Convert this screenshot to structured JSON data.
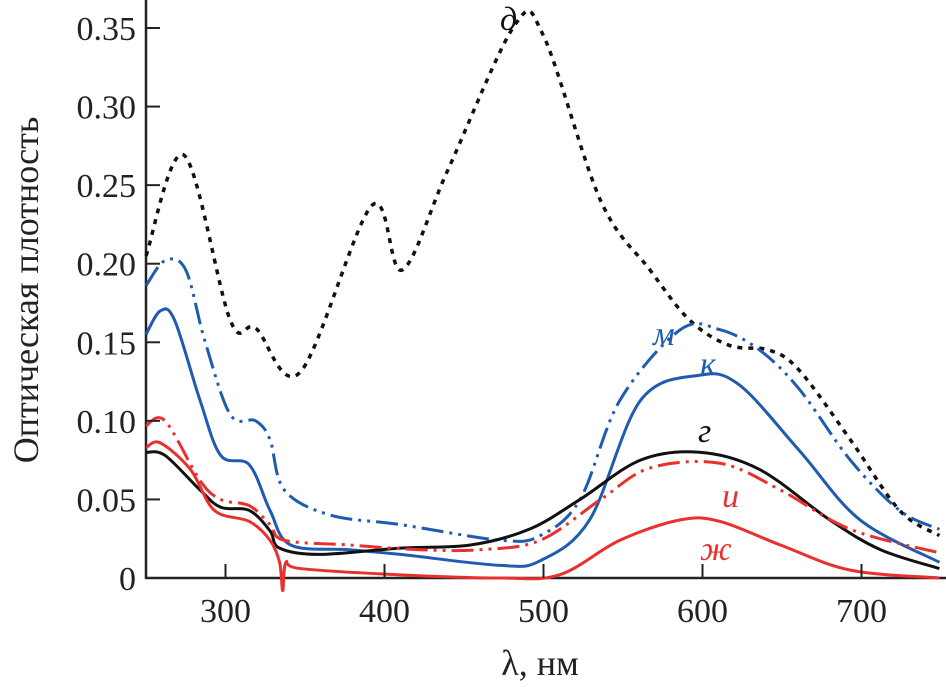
{
  "chart_data": {
    "type": "line",
    "xlabel": "λ, нм",
    "ylabel": "Оптическая плотность",
    "xlim": [
      250,
      750
    ],
    "ylim": [
      0,
      0.35
    ],
    "xticks": [
      300,
      400,
      500,
      600,
      700
    ],
    "xtick_labels": [
      "300",
      "400",
      "500",
      "600",
      "700"
    ],
    "yticks": [
      0,
      0.05,
      0.1,
      0.15,
      0.2,
      0.25,
      0.3,
      0.35
    ],
    "ytick_labels": [
      "0",
      "0.05",
      "0.10",
      "0.15",
      "0.20",
      "0.25",
      "0.30",
      "0.35"
    ],
    "grid": false,
    "series": [
      {
        "name": "д",
        "color": "#111111",
        "style": "dotted",
        "x": [
          250,
          274,
          303,
          319,
          347,
          392,
          411,
          440,
          482,
          500,
          536,
          567,
          592,
          617,
          642,
          661,
          693,
          724,
          749
        ],
        "y": [
          0.205,
          0.269,
          0.164,
          0.159,
          0.131,
          0.237,
          0.196,
          0.26,
          0.352,
          0.345,
          0.24,
          0.196,
          0.164,
          0.148,
          0.145,
          0.132,
          0.088,
          0.043,
          0.027
        ]
      },
      {
        "name": "м",
        "color": "#1f5cb0",
        "style": "dashdot",
        "x": [
          250,
          262,
          275,
          287,
          303,
          319,
          328,
          337,
          366,
          410,
          473,
          498,
          523,
          548,
          586,
          611,
          636,
          661,
          693,
          724,
          749
        ],
        "y": [
          0.186,
          0.202,
          0.196,
          0.151,
          0.104,
          0.1,
          0.088,
          0.056,
          0.04,
          0.034,
          0.024,
          0.027,
          0.05,
          0.113,
          0.158,
          0.158,
          0.145,
          0.12,
          0.075,
          0.043,
          0.031
        ]
      },
      {
        "name": "к",
        "color": "#1f5cb0",
        "style": "solid",
        "x": [
          250,
          259,
          268,
          284,
          297,
          315,
          328,
          341,
          378,
          410,
          473,
          498,
          529,
          561,
          598,
          623,
          661,
          699,
          749
        ],
        "y": [
          0.155,
          0.17,
          0.164,
          0.113,
          0.078,
          0.072,
          0.043,
          0.021,
          0.018,
          0.015,
          0.008,
          0.011,
          0.037,
          0.113,
          0.129,
          0.123,
          0.081,
          0.037,
          0.01
        ]
      },
      {
        "name": "г",
        "color": "#111111",
        "style": "solid",
        "x": [
          250,
          262,
          284,
          297,
          315,
          328,
          334,
          359,
          410,
          454,
          491,
          523,
          561,
          598,
          636,
          680,
          712,
          749
        ],
        "y": [
          0.08,
          0.078,
          0.056,
          0.045,
          0.043,
          0.03,
          0.019,
          0.015,
          0.019,
          0.021,
          0.031,
          0.05,
          0.075,
          0.08,
          0.069,
          0.037,
          0.018,
          0.006
        ]
      },
      {
        "name": "и",
        "color": "#e8312f",
        "style": "dashdot",
        "x": [
          250,
          262,
          284,
          297,
          315,
          328,
          337,
          378,
          422,
          460,
          498,
          536,
          567,
          611,
          649,
          693,
          749
        ],
        "y": [
          0.097,
          0.1,
          0.062,
          0.05,
          0.046,
          0.034,
          0.024,
          0.021,
          0.018,
          0.018,
          0.024,
          0.05,
          0.07,
          0.073,
          0.056,
          0.031,
          0.016
        ]
      },
      {
        "name": "ж",
        "color": "#e8312f",
        "style": "solid",
        "x": [
          250,
          259,
          278,
          293,
          315,
          328,
          334,
          336,
          338,
          347,
          410,
          473,
          510,
          548,
          586,
          611,
          649,
          693,
          749
        ],
        "y": [
          0.083,
          0.086,
          0.069,
          0.043,
          0.036,
          0.024,
          0.01,
          -0.008,
          0.01,
          0.006,
          0.002,
          0.0,
          0.002,
          0.024,
          0.037,
          0.036,
          0.021,
          0.005,
          0.0
        ]
      }
    ]
  }
}
